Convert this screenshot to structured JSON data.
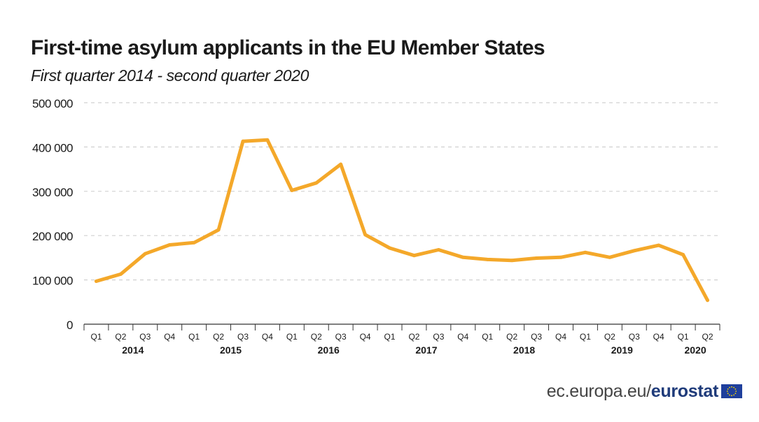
{
  "header": {
    "title": "First-time asylum applicants in the EU Member States",
    "subtitle": "First quarter 2014 - second quarter 2020"
  },
  "footer": {
    "site": "ec.europa.eu/",
    "brand": "eurostat"
  },
  "colors": {
    "line": "#f4a82a",
    "grid": "#d0d0d0",
    "axis": "#333333",
    "text": "#1a1a1a",
    "flag_blue": "#1f3f9c",
    "flag_star": "#ffdd00"
  },
  "chart_data": {
    "type": "line",
    "title": "First-time asylum applicants in the EU Member States",
    "subtitle": "First quarter 2014 - second quarter 2020",
    "xlabel": "",
    "ylabel": "",
    "ylim": [
      0,
      500000
    ],
    "yticks": [
      0,
      100000,
      200000,
      300000,
      400000,
      500000
    ],
    "ytick_labels": [
      "0",
      "100 000",
      "200 000",
      "300 000",
      "400 000",
      "500 000"
    ],
    "grid": true,
    "categories": [
      "Q1",
      "Q2",
      "Q3",
      "Q4",
      "Q1",
      "Q2",
      "Q3",
      "Q4",
      "Q1",
      "Q2",
      "Q3",
      "Q4",
      "Q1",
      "Q2",
      "Q3",
      "Q4",
      "Q1",
      "Q2",
      "Q3",
      "Q4",
      "Q1",
      "Q2",
      "Q3",
      "Q4",
      "Q1",
      "Q2"
    ],
    "years": [
      {
        "label": "2014",
        "start": 0,
        "end": 3
      },
      {
        "label": "2015",
        "start": 4,
        "end": 7
      },
      {
        "label": "2016",
        "start": 8,
        "end": 11
      },
      {
        "label": "2017",
        "start": 12,
        "end": 15
      },
      {
        "label": "2018",
        "start": 16,
        "end": 19
      },
      {
        "label": "2019",
        "start": 20,
        "end": 23
      },
      {
        "label": "2020",
        "start": 24,
        "end": 25
      }
    ],
    "series": [
      {
        "values": [
          97000,
          113000,
          159000,
          179000,
          184000,
          213000,
          413000,
          416000,
          302000,
          319000,
          361000,
          202000,
          172000,
          155000,
          168000,
          151000,
          146000,
          144000,
          149000,
          151000,
          162000,
          151000,
          166000,
          178000,
          157000,
          54000
        ]
      }
    ]
  }
}
